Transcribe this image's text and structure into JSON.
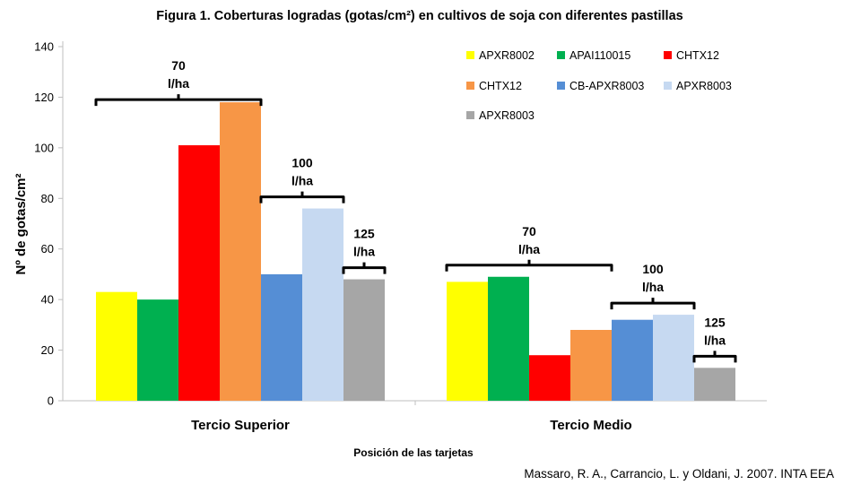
{
  "chart_data": {
    "type": "bar",
    "title": "Figura 1. Coberturas logradas (gotas/cm²) en cultivos de soja con diferentes pastillas",
    "xlabel": "Posición de las tarjetas",
    "ylabel": "Nº de gotas/cm²",
    "ylim": [
      0,
      140
    ],
    "yticks": [
      0,
      20,
      40,
      60,
      80,
      100,
      120,
      140
    ],
    "yticks_labels": [
      "0",
      "20",
      "40",
      "60",
      "80",
      "100",
      "120",
      "140"
    ],
    "categories": [
      "Tercio Superior",
      "Tercio Medio"
    ],
    "series": [
      {
        "name": "APXR8002",
        "color": "#ffff00",
        "values": [
          43,
          47
        ]
      },
      {
        "name": "APAI110015",
        "color": "#00b050",
        "values": [
          40,
          49
        ]
      },
      {
        "name": "CHTX12",
        "color": "#ff0000",
        "values": [
          101,
          18
        ]
      },
      {
        "name": "CHTX12",
        "color": "#f79646",
        "values": [
          118,
          28
        ]
      },
      {
        "name": "CB-APXR8003",
        "color": "#558ed5",
        "values": [
          50,
          32
        ]
      },
      {
        "name": "APXR8003",
        "color": "#c6d9f1",
        "values": [
          76,
          34
        ]
      },
      {
        "name": "APXR8003",
        "color": "#a6a6a6",
        "values": [
          48,
          13
        ]
      }
    ],
    "annotations": [
      {
        "category": 0,
        "from": 0,
        "to": 3,
        "line1": "70",
        "line2": "l/ha"
      },
      {
        "category": 0,
        "from": 4,
        "to": 5,
        "line1": "100",
        "line2": "l/ha"
      },
      {
        "category": 0,
        "from": 6,
        "to": 6,
        "line1": "125",
        "line2": "l/ha"
      },
      {
        "category": 1,
        "from": 0,
        "to": 3,
        "line1": "70",
        "line2": "l/ha"
      },
      {
        "category": 1,
        "from": 4,
        "to": 5,
        "line1": "100",
        "line2": "l/ha"
      },
      {
        "category": 1,
        "from": 6,
        "to": 6,
        "line1": "125",
        "line2": "l/ha"
      }
    ],
    "legend": "top-right",
    "grid": false
  },
  "source": "Massaro, R. A., Carrancio, L. y Oldani, J. 2007. INTA EEA",
  "colors": {
    "axis": "#bfbfbf",
    "text": "#000000"
  }
}
